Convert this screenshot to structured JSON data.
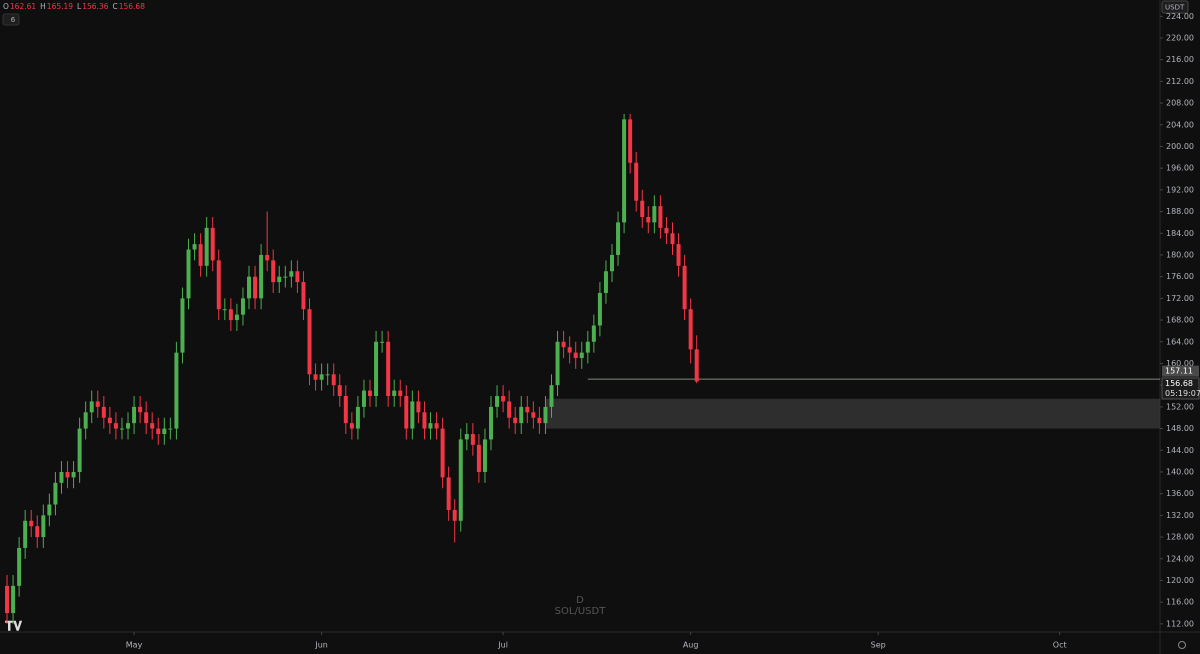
{
  "chart_data": {
    "type": "candlestick",
    "symbol": "SOL/USDT",
    "interval": "D",
    "currency": "USDT",
    "indicator_count": 6,
    "header": {
      "open_label": "O",
      "open": 162.61,
      "high_label": "H",
      "high": 165.19,
      "low_label": "L",
      "low": 156.36,
      "close_label": "C",
      "close": 156.68
    },
    "up_color": "#4caf50",
    "down_color": "#f23645",
    "open": [
      119,
      114,
      119,
      126,
      131,
      130,
      128,
      132,
      134,
      138,
      140,
      139,
      140,
      148,
      151,
      153,
      152,
      150,
      149,
      148,
      148,
      149,
      152,
      151,
      149,
      148,
      147,
      148,
      148,
      162,
      172,
      181,
      182,
      178,
      185,
      179,
      170,
      170,
      168,
      169,
      172,
      176,
      172,
      180,
      179,
      175,
      176,
      176,
      177,
      175,
      170,
      158,
      157,
      158,
      158,
      156,
      154,
      149,
      148,
      152,
      155,
      154,
      164,
      164,
      154,
      155,
      154,
      148,
      153,
      151,
      148,
      149,
      148,
      139,
      133,
      131,
      146,
      147,
      145,
      140,
      146,
      152,
      154,
      153,
      150,
      149,
      152,
      151,
      150,
      149,
      152,
      156,
      164,
      163,
      162,
      161,
      162,
      164,
      167,
      173,
      177,
      180,
      186,
      205,
      197,
      190,
      187,
      186,
      189,
      185,
      184,
      182,
      178,
      170,
      162.61
    ],
    "high": [
      121,
      121,
      128,
      133,
      133,
      132,
      134,
      136,
      140,
      142,
      142,
      142,
      150,
      153,
      155,
      155,
      154,
      152,
      151,
      150,
      151,
      154,
      154,
      153,
      151,
      150,
      150,
      150,
      164,
      174,
      183,
      184,
      184,
      187,
      187,
      181,
      172,
      172,
      171,
      174,
      178,
      178,
      182,
      188,
      181,
      178,
      178,
      179,
      179,
      177,
      172,
      160,
      160,
      160,
      160,
      158,
      156,
      151,
      154,
      157,
      157,
      166,
      166,
      166,
      157,
      157,
      156,
      155,
      155,
      153,
      151,
      151,
      150,
      141,
      135,
      148,
      149,
      149,
      147,
      148,
      154,
      156,
      156,
      155,
      152,
      154,
      154,
      153,
      152,
      154,
      158,
      166,
      166,
      165,
      164,
      164,
      166,
      169,
      175,
      179,
      182,
      188,
      206,
      206,
      199,
      192,
      189,
      191,
      191,
      187,
      186,
      184,
      180,
      172,
      165.19
    ],
    "low": [
      112,
      112,
      117,
      124,
      128,
      126,
      126,
      130,
      132,
      136,
      137,
      137,
      138,
      146,
      149,
      150,
      148,
      147,
      146,
      146,
      146,
      147,
      149,
      147,
      146,
      145,
      145,
      146,
      146,
      160,
      170,
      179,
      176,
      176,
      177,
      168,
      168,
      166,
      166,
      167,
      170,
      170,
      170,
      177,
      173,
      173,
      174,
      174,
      173,
      168,
      156,
      155,
      155,
      156,
      154,
      152,
      147,
      146,
      146,
      150,
      152,
      152,
      162,
      152,
      152,
      152,
      146,
      146,
      149,
      146,
      146,
      146,
      137,
      131,
      127,
      129,
      144,
      143,
      138,
      138,
      144,
      150,
      151,
      148,
      147,
      147,
      149,
      148,
      147,
      147,
      150,
      154,
      161,
      160,
      159,
      159,
      160,
      162,
      165,
      171,
      175,
      178,
      184,
      195,
      188,
      185,
      184,
      184,
      183,
      182,
      180,
      176,
      168,
      160,
      156.36
    ],
    "close": [
      114,
      119,
      126,
      131,
      130,
      128,
      132,
      134,
      138,
      140,
      139,
      140,
      148,
      151,
      153,
      152,
      150,
      149,
      148,
      148,
      149,
      152,
      151,
      149,
      148,
      147,
      148,
      148,
      162,
      172,
      181,
      182,
      178,
      185,
      179,
      170,
      170,
      168,
      169,
      172,
      176,
      172,
      180,
      179,
      175,
      176,
      176,
      177,
      175,
      170,
      158,
      157,
      158,
      158,
      156,
      154,
      149,
      148,
      152,
      155,
      154,
      164,
      164,
      154,
      155,
      154,
      148,
      153,
      151,
      148,
      149,
      148,
      139,
      133,
      131,
      146,
      147,
      145,
      140,
      146,
      152,
      154,
      153,
      150,
      149,
      152,
      151,
      150,
      149,
      152,
      156,
      164,
      163,
      162,
      161,
      162,
      164,
      167,
      173,
      177,
      180,
      186,
      205,
      197,
      190,
      187,
      186,
      189,
      185,
      184,
      182,
      178,
      170,
      162.61,
      156.68
    ],
    "xlim": [
      -1.16,
      190.58
    ],
    "xticks": [
      {
        "value": 21,
        "label": "May"
      },
      {
        "value": 52,
        "label": "Jun"
      },
      {
        "value": 82,
        "label": "Jul"
      },
      {
        "value": 113,
        "label": "Aug"
      },
      {
        "value": 144,
        "label": "Sep"
      },
      {
        "value": 174,
        "label": "Oct"
      }
    ],
    "ylim": [
      110.5,
      227
    ],
    "yticks": [
      {
        "value": 112,
        "label": "112.00"
      },
      {
        "value": 116,
        "label": "116.00"
      },
      {
        "value": 120,
        "label": "120.00"
      },
      {
        "value": 124,
        "label": "124.00"
      },
      {
        "value": 128,
        "label": "128.00"
      },
      {
        "value": 132,
        "label": "132.00"
      },
      {
        "value": 136,
        "label": "136.00"
      },
      {
        "value": 140,
        "label": "140.00"
      },
      {
        "value": 144,
        "label": "144.00"
      },
      {
        "value": 148,
        "label": "148.00"
      },
      {
        "value": 152,
        "label": "152.00"
      },
      {
        "value": 156,
        "label": "156.00"
      },
      {
        "value": 160,
        "label": "160.00"
      },
      {
        "value": 164,
        "label": "164.00"
      },
      {
        "value": 168,
        "label": "168.00"
      },
      {
        "value": 172,
        "label": "172.00"
      },
      {
        "value": 176,
        "label": "176.00"
      },
      {
        "value": 180,
        "label": "180.00"
      },
      {
        "value": 184,
        "label": "184.00"
      },
      {
        "value": 188,
        "label": "188.00"
      },
      {
        "value": 192,
        "label": "192.00"
      },
      {
        "value": 196,
        "label": "196.00"
      },
      {
        "value": 200,
        "label": "200.00"
      },
      {
        "value": 204,
        "label": "204.00"
      },
      {
        "value": 208,
        "label": "208.00"
      },
      {
        "value": 212,
        "label": "212.00"
      },
      {
        "value": 216,
        "label": "216.00"
      },
      {
        "value": 220,
        "label": "220.00"
      },
      {
        "value": 224,
        "label": "224.00"
      }
    ],
    "level_line": {
      "value": 157.11,
      "start": 96
    },
    "zone": {
      "low": 148,
      "high": 153.5,
      "start": 89
    },
    "last_price": 156.68,
    "countdown": "05:19:07"
  }
}
